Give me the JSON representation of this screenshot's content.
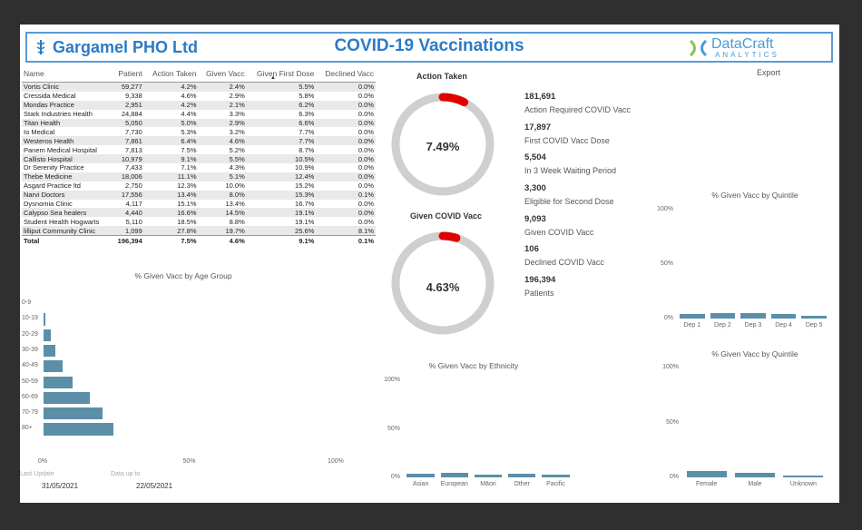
{
  "header": {
    "company": "Gargamel PHO Ltd",
    "title": "COVID-19 Vaccinations",
    "logo_main": "DataCraft",
    "logo_sub": "ANALYTICS",
    "export_label": "Export"
  },
  "table": {
    "columns": [
      "Name",
      "Patient",
      "Action Taken",
      "Given Vacc",
      "Given First Dose",
      "Declined Vacc"
    ],
    "rows": [
      [
        "Vortis Clinic",
        "59,277",
        "4.2%",
        "2.4%",
        "5.5%",
        "0.0%"
      ],
      [
        "Cressida Medical",
        "9,338",
        "4.6%",
        "2.9%",
        "5.8%",
        "0.0%"
      ],
      [
        "Mondas Practice",
        "2,951",
        "4.2%",
        "2.1%",
        "6.2%",
        "0.0%"
      ],
      [
        "Stark Industries Health",
        "24,884",
        "4.4%",
        "3.3%",
        "6.3%",
        "0.0%"
      ],
      [
        "Titan Health",
        "5,050",
        "5.0%",
        "2.9%",
        "6.6%",
        "0.0%"
      ],
      [
        "Io Medical",
        "7,730",
        "5.3%",
        "3.2%",
        "7.7%",
        "0.0%"
      ],
      [
        "Westeros Health",
        "7,861",
        "6.4%",
        "4.6%",
        "7.7%",
        "0.0%"
      ],
      [
        "Panem Medical Hospital",
        "7,813",
        "7.5%",
        "5.2%",
        "8.7%",
        "0.0%"
      ],
      [
        "Callisto Hospital",
        "10,979",
        "9.1%",
        "5.5%",
        "10.5%",
        "0.0%"
      ],
      [
        "Dr Serenity Practice",
        "7,433",
        "7.1%",
        "4.3%",
        "10.9%",
        "0.0%"
      ],
      [
        "Thebe Medicine",
        "18,006",
        "11.1%",
        "5.1%",
        "12.4%",
        "0.0%"
      ],
      [
        "Asgard Practice ltd",
        "2,750",
        "12.3%",
        "10.0%",
        "15.2%",
        "0.0%"
      ],
      [
        "Narvi Doctors",
        "17,556",
        "13.4%",
        "8.0%",
        "15.3%",
        "0.1%"
      ],
      [
        "Dysnomia Clinic",
        "4,117",
        "15.1%",
        "13.4%",
        "16.7%",
        "0.0%"
      ],
      [
        "Calypso Sea healers",
        "4,440",
        "16.6%",
        "14.5%",
        "19.1%",
        "0.0%"
      ],
      [
        "Student Health Hogwarts",
        "5,110",
        "18.5%",
        "8.8%",
        "19.1%",
        "0.0%"
      ],
      [
        "lilliput Community Clinic",
        "1,099",
        "27.8%",
        "19.7%",
        "25.6%",
        "8.1%"
      ]
    ],
    "total": [
      "Total",
      "196,394",
      "7.5%",
      "4.6%",
      "9.1%",
      "0.1%"
    ]
  },
  "gauges": [
    {
      "title": "Action Taken",
      "value_label": "7.49%",
      "value": 7.49
    },
    {
      "title": "Given COVID Vacc",
      "value_label": "4.63%",
      "value": 4.63
    }
  ],
  "kpis": [
    {
      "value": "181,691",
      "label": "Action Required COVID Vacc"
    },
    {
      "value": "17,897",
      "label": "First COVID Vacc Dose"
    },
    {
      "value": "5,504",
      "label": "In 3 Week Waiting Period"
    },
    {
      "value": "3,300",
      "label": "Eligible for Second Dose"
    },
    {
      "value": "9,093",
      "label": "Given COVID Vacc"
    },
    {
      "value": "106",
      "label": "Declined COVID Vacc"
    },
    {
      "value": "196,394",
      "label": "Patients"
    }
  ],
  "footer": {
    "last_update_label": "Last Update",
    "last_update": "31/05/2021",
    "data_up_to_label": "Data up to",
    "data_up_to": "22/05/2021"
  },
  "chart_data": [
    {
      "type": "bar",
      "orientation": "horizontal",
      "title": "% Given Vacc by Age Group",
      "categories": [
        "0-9",
        "10-19",
        "20-29",
        "30-39",
        "40-49",
        "50-59",
        "60-69",
        "70-79",
        "80+"
      ],
      "values": [
        0.0,
        0.5,
        2.5,
        4.0,
        6.5,
        10.0,
        16.0,
        20.5,
        24.0
      ],
      "xlim": [
        0,
        100
      ],
      "ticks": [
        "0%",
        "50%",
        "100%"
      ]
    },
    {
      "type": "bar",
      "title": "% Given Vacc by Ethnicity",
      "categories": [
        "Asian",
        "European",
        "Māori",
        "Other",
        "Pacific"
      ],
      "values": [
        3.5,
        5.0,
        2.5,
        4.0,
        2.5
      ],
      "ylim": [
        0,
        100
      ],
      "ticks": [
        "0%",
        "50%",
        "100%"
      ]
    },
    {
      "type": "bar",
      "title": "% Given Vacc by Quintile",
      "categories": [
        "Dep 1",
        "Dep 2",
        "Dep 3",
        "Dep 4",
        "Dep 5"
      ],
      "values": [
        4.5,
        5.0,
        5.0,
        4.0,
        2.5
      ],
      "ylim": [
        0,
        100
      ],
      "ticks": [
        "0%",
        "50%",
        "100%"
      ]
    },
    {
      "type": "bar",
      "title": "% Given Vacc by Quintile",
      "categories": [
        "Female",
        "Male",
        "Unknown"
      ],
      "values": [
        5.5,
        3.8,
        1.5
      ],
      "ylim": [
        0,
        100
      ],
      "ticks": [
        "0%",
        "50%",
        "100%"
      ]
    }
  ],
  "colors": {
    "accent": "#2b7bc6",
    "bar": "#5b8fa8",
    "gauge_track": "#cfcfcf",
    "gauge_fill": "#e00000"
  }
}
